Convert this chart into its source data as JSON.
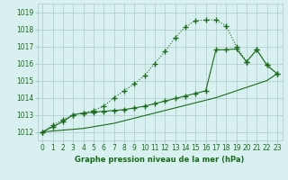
{
  "x": [
    0,
    1,
    2,
    3,
    4,
    5,
    6,
    7,
    8,
    9,
    10,
    11,
    12,
    13,
    14,
    15,
    16,
    17,
    18,
    19,
    20,
    21,
    22,
    23
  ],
  "line1": [
    1012.0,
    1012.4,
    1012.7,
    1013.0,
    1013.1,
    1013.25,
    1013.5,
    1014.0,
    1014.4,
    1014.8,
    1015.3,
    1016.0,
    1016.7,
    1017.5,
    1018.15,
    1018.5,
    1018.55,
    1018.55,
    1018.2,
    1017.0,
    1016.1,
    1016.8,
    1015.9,
    1015.4
  ],
  "line2": [
    1012.0,
    1012.3,
    1012.6,
    1013.0,
    1013.1,
    1013.15,
    1013.2,
    1013.25,
    1013.3,
    1013.4,
    1013.5,
    1013.65,
    1013.8,
    1013.95,
    1014.1,
    1014.25,
    1014.4,
    1016.8,
    1016.8,
    1016.85,
    1016.1,
    1016.8,
    1015.9,
    1015.4
  ],
  "line3": [
    1012.0,
    1012.05,
    1012.1,
    1012.15,
    1012.2,
    1012.3,
    1012.4,
    1012.5,
    1012.65,
    1012.8,
    1012.95,
    1013.1,
    1013.25,
    1013.4,
    1013.55,
    1013.7,
    1013.85,
    1014.0,
    1014.2,
    1014.4,
    1014.6,
    1014.8,
    1015.0,
    1015.4
  ],
  "ylim": [
    1011.5,
    1019.5
  ],
  "xlim": [
    -0.5,
    23.5
  ],
  "yticks": [
    1012,
    1013,
    1014,
    1015,
    1016,
    1017,
    1018,
    1019
  ],
  "xticks": [
    0,
    1,
    2,
    3,
    4,
    5,
    6,
    7,
    8,
    9,
    10,
    11,
    12,
    13,
    14,
    15,
    16,
    17,
    18,
    19,
    20,
    21,
    22,
    23
  ],
  "line_color": "#1a6b1a",
  "bg_color": "#d8f0f0",
  "grid_color": "#aacaca",
  "xlabel": "Graphe pression niveau de la mer (hPa)",
  "xlabel_color": "#1a6b1a",
  "marker": "+",
  "marker_size": 4,
  "tick_fontsize": 5.5,
  "xlabel_fontsize": 6.0
}
